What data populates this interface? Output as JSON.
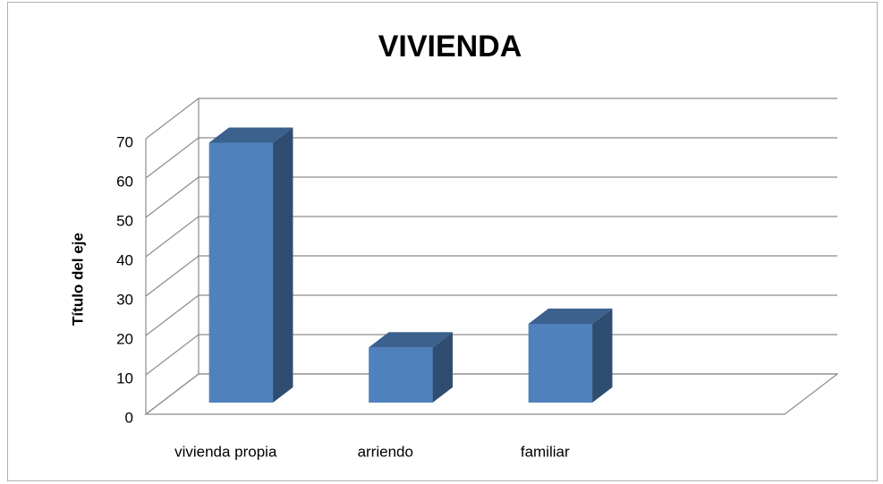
{
  "chart_data": {
    "type": "bar3d",
    "title": "VIVIENDA",
    "y_label": "Título del eje",
    "categories": [
      "vivienda propia",
      "arriendo",
      "familiar",
      null
    ],
    "values": [
      66,
      14,
      20,
      null
    ],
    "color": "#4f81bd",
    "ylim": [
      0,
      70
    ],
    "yticks": [
      0,
      10,
      20,
      30,
      40,
      50,
      60,
      70
    ],
    "grid": true
  }
}
